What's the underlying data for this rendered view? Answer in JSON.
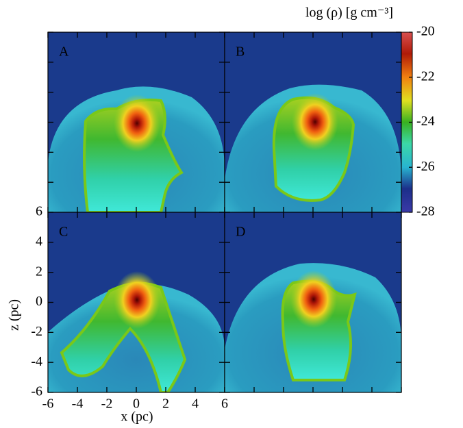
{
  "chart_data": {
    "type": "image-grid",
    "panels": [
      "A",
      "B",
      "C",
      "D"
    ],
    "xlabel": "x (pc)",
    "ylabel": "z (pc)",
    "xlim": [
      -6,
      6
    ],
    "ylim": [
      -6,
      6
    ],
    "xticks": [
      -6,
      -4,
      -2,
      0,
      2,
      4,
      6
    ],
    "yticks": [
      -6,
      -4,
      -2,
      0,
      2,
      4,
      6
    ],
    "colorbar": {
      "label": "log (ρ) [g cm⁻³]",
      "lim": [
        -28,
        -20
      ],
      "ticks": [
        -28,
        -26,
        -24,
        -22,
        -20
      ]
    }
  }
}
